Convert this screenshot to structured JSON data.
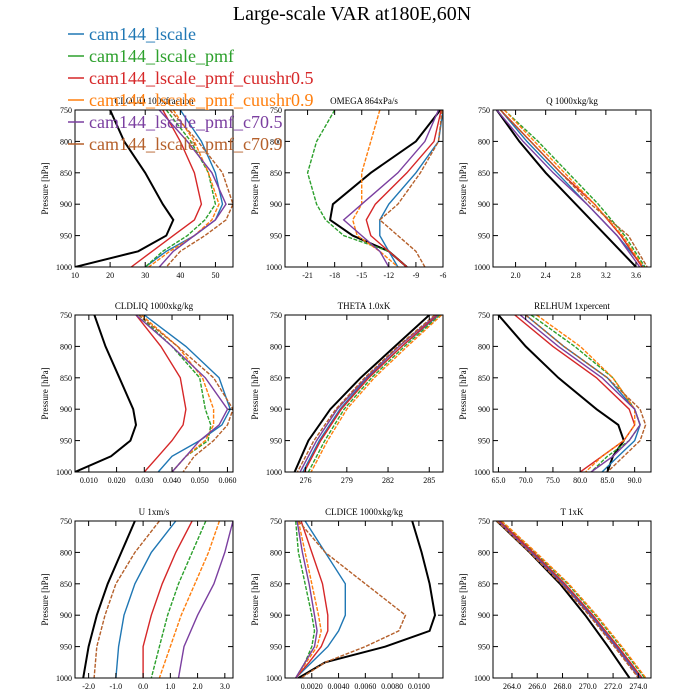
{
  "title": "Large-scale VAR at180E,60N",
  "legend": [
    {
      "name": "cam144_lscale",
      "color": "#1f77b4"
    },
    {
      "name": "cam144_lscale_pmf",
      "color": "#2ca02c"
    },
    {
      "name": "cam144_lscale_pmf_cuushr0.5",
      "color": "#d62728"
    },
    {
      "name": "cam144_lscale_pmf_cuushr0.9",
      "color": "#ff7f0e"
    },
    {
      "name": "cam144_lscale_pmf_c70.5",
      "color": "#7b3fa0"
    },
    {
      "name": "cam144_lscale_pmf_c70.9",
      "color": "#b5602b"
    }
  ],
  "black_line_color": "#000000",
  "chart_data": [
    {
      "type": "line",
      "title": "CLOUD 100xfraction",
      "ylabel": "Pressure [hPa]",
      "xlim": [
        10,
        55
      ],
      "ylim": [
        750,
        1000
      ],
      "xticks": [
        10,
        20,
        30,
        40,
        50
      ],
      "xticklabels": [
        "10",
        "20",
        "30",
        "40",
        "50"
      ],
      "y": [
        750,
        800,
        850,
        900,
        925,
        950,
        975,
        1000
      ],
      "series": [
        {
          "name": "black",
          "values": [
            20,
            24,
            30,
            35,
            38,
            36,
            28,
            10
          ]
        },
        {
          "name": "cam144_lscale",
          "values": [
            40,
            46,
            50,
            52,
            50,
            44,
            36,
            30
          ]
        },
        {
          "name": "cam144_lscale_pmf",
          "values": [
            36,
            43,
            48,
            50,
            47,
            42,
            35,
            30
          ]
        },
        {
          "name": "cam144_lscale_pmf_cuushr0.5",
          "values": [
            35,
            40,
            44,
            46,
            44,
            38,
            32,
            26
          ]
        },
        {
          "name": "cam144_lscale_pmf_cuushr0.9",
          "values": [
            38,
            44,
            48,
            51,
            49,
            44,
            37,
            31
          ]
        },
        {
          "name": "cam144_lscale_pmf_c70.5",
          "values": [
            34,
            42,
            49,
            53,
            50,
            44,
            38,
            34
          ]
        },
        {
          "name": "cam144_lscale_pmf_c70.9",
          "values": [
            37,
            45,
            52,
            55,
            53,
            47,
            40,
            36
          ]
        }
      ]
    },
    {
      "type": "line",
      "title": "OMEGA 864xPa/s",
      "ylabel": "Pressure [hPa]",
      "xlim": [
        -23.5,
        -6
      ],
      "ylim": [
        750,
        1000
      ],
      "xticks": [
        -21,
        -18,
        -15,
        -12,
        -9,
        -6
      ],
      "xticklabels": [
        "-21",
        "-18",
        "-15",
        "-12",
        "-9",
        "-6"
      ],
      "y": [
        750,
        800,
        850,
        900,
        925,
        950,
        975,
        1000
      ],
      "series": [
        {
          "name": "black",
          "values": [
            -6.3,
            -9,
            -14,
            -18.2,
            -18.5,
            -16,
            -12,
            -10
          ]
        },
        {
          "name": "cam144_lscale",
          "values": [
            -6,
            -6.5,
            -9,
            -12,
            -13,
            -13,
            -12,
            -11
          ]
        },
        {
          "name": "cam144_lscale_pmf",
          "values": [
            -18,
            -20,
            -21,
            -20,
            -19,
            -17,
            -12,
            -10
          ]
        },
        {
          "name": "cam144_lscale_pmf_cuushr0.5",
          "values": [
            -6.2,
            -7,
            -10,
            -13.5,
            -14.5,
            -14,
            -12,
            -10
          ]
        },
        {
          "name": "cam144_lscale_pmf_cuushr0.9",
          "values": [
            -13,
            -14,
            -15,
            -15,
            -16,
            -15.5,
            -13,
            -11
          ]
        },
        {
          "name": "cam144_lscale_pmf_c70.5",
          "values": [
            -6.5,
            -8,
            -11,
            -15,
            -17,
            -15,
            -13,
            -12
          ]
        },
        {
          "name": "cam144_lscale_pmf_c70.9",
          "values": [
            -6.1,
            -6.5,
            -8.5,
            -11,
            -13,
            -11,
            -9,
            -8
          ]
        }
      ]
    },
    {
      "type": "line",
      "title": "Q 1000xkg/kg",
      "ylabel": "Pressure [hPa]",
      "xlim": [
        1.7,
        3.8
      ],
      "ylim": [
        750,
        1000
      ],
      "xticks": [
        2.0,
        2.4,
        2.8,
        3.2,
        3.6
      ],
      "xticklabels": [
        "2.0",
        "2.4",
        "2.8",
        "3.2",
        "3.6"
      ],
      "y": [
        750,
        800,
        850,
        900,
        950,
        1000
      ],
      "series": [
        {
          "name": "black",
          "values": [
            1.75,
            2.05,
            2.4,
            2.8,
            3.2,
            3.6
          ]
        },
        {
          "name": "cam144_lscale",
          "values": [
            1.8,
            2.15,
            2.55,
            2.95,
            3.35,
            3.7
          ]
        },
        {
          "name": "cam144_lscale_pmf",
          "values": [
            1.85,
            2.3,
            2.7,
            3.1,
            3.45,
            3.72
          ]
        },
        {
          "name": "cam144_lscale_pmf_cuushr0.5",
          "values": [
            1.8,
            2.2,
            2.6,
            3.05,
            3.4,
            3.68
          ]
        },
        {
          "name": "cam144_lscale_pmf_cuushr0.9",
          "values": [
            1.85,
            2.25,
            2.65,
            3.05,
            3.42,
            3.7
          ]
        },
        {
          "name": "cam144_lscale_pmf_c70.5",
          "values": [
            1.75,
            2.1,
            2.5,
            2.95,
            3.35,
            3.65
          ]
        },
        {
          "name": "cam144_lscale_pmf_c70.9",
          "values": [
            1.8,
            2.2,
            2.6,
            3.0,
            3.5,
            3.75
          ]
        }
      ]
    },
    {
      "type": "line",
      "title": "CLDLIQ 1000xkg/kg",
      "ylabel": "Pressure [hPa]",
      "xlim": [
        0.005,
        0.062
      ],
      "ylim": [
        750,
        1000
      ],
      "xticks": [
        0.01,
        0.02,
        0.03,
        0.04,
        0.05,
        0.06
      ],
      "xticklabels": [
        "0.010",
        "0.020",
        "0.030",
        "0.040",
        "0.050",
        "0.060"
      ],
      "y": [
        750,
        800,
        850,
        900,
        925,
        950,
        975,
        1000
      ],
      "series": [
        {
          "name": "black",
          "values": [
            0.012,
            0.016,
            0.021,
            0.026,
            0.027,
            0.025,
            0.018,
            0.005
          ]
        },
        {
          "name": "cam144_lscale",
          "values": [
            0.03,
            0.045,
            0.057,
            0.061,
            0.058,
            0.05,
            0.04,
            0.035
          ]
        },
        {
          "name": "cam144_lscale_pmf",
          "values": [
            0.028,
            0.04,
            0.05,
            0.052,
            0.054,
            0.053,
            0.045,
            0.04
          ]
        },
        {
          "name": "cam144_lscale_pmf_cuushr0.5",
          "values": [
            0.027,
            0.036,
            0.043,
            0.045,
            0.044,
            0.04,
            0.035,
            0.03
          ]
        },
        {
          "name": "cam144_lscale_pmf_cuushr0.9",
          "values": [
            0.029,
            0.042,
            0.051,
            0.055,
            0.055,
            0.052,
            0.045,
            0.04
          ]
        },
        {
          "name": "cam144_lscale_pmf_c70.5",
          "values": [
            0.027,
            0.04,
            0.052,
            0.06,
            0.057,
            0.05,
            0.045,
            0.04
          ]
        },
        {
          "name": "cam144_lscale_pmf_c70.9",
          "values": [
            0.028,
            0.042,
            0.055,
            0.062,
            0.06,
            0.055,
            0.048,
            0.044
          ]
        }
      ]
    },
    {
      "type": "line",
      "title": "THETA 1.0xK",
      "ylabel": "Pressure [hPa]",
      "xlim": [
        274.5,
        286
      ],
      "ylim": [
        750,
        1000
      ],
      "xticks": [
        276,
        279,
        282,
        285
      ],
      "xticklabels": [
        "276",
        "279",
        "282",
        "285"
      ],
      "y": [
        750,
        800,
        850,
        900,
        950,
        1000
      ],
      "series": [
        {
          "name": "black",
          "values": [
            285,
            282.5,
            280,
            277.8,
            276.2,
            275.2
          ]
        },
        {
          "name": "cam144_lscale",
          "values": [
            285.7,
            283,
            280.5,
            278.5,
            277,
            275.8
          ]
        },
        {
          "name": "cam144_lscale_pmf",
          "values": [
            285.8,
            283.2,
            280.8,
            278.8,
            277.4,
            276.2
          ]
        },
        {
          "name": "cam144_lscale_pmf_cuushr0.5",
          "values": [
            285.6,
            283,
            280.6,
            278.6,
            277.1,
            275.9
          ]
        },
        {
          "name": "cam144_lscale_pmf_cuushr0.9",
          "values": [
            285.9,
            283.4,
            281,
            279,
            277.6,
            276.4
          ]
        },
        {
          "name": "cam144_lscale_pmf_c70.5",
          "values": [
            285.5,
            282.8,
            280.4,
            278.3,
            276.8,
            275.6
          ]
        },
        {
          "name": "cam144_lscale_pmf_c70.9",
          "values": [
            285.4,
            282.7,
            280.3,
            278.2,
            276.6,
            275.4
          ]
        }
      ]
    },
    {
      "type": "line",
      "title": "RELHUM 1xpercent",
      "ylabel": "Pressure [hPa]",
      "xlim": [
        64,
        93
      ],
      "ylim": [
        750,
        1000
      ],
      "xticks": [
        65,
        70,
        75,
        80,
        85,
        90
      ],
      "xticklabels": [
        "65.0",
        "70.0",
        "75.0",
        "80.0",
        "85.0",
        "90.0"
      ],
      "y": [
        750,
        800,
        850,
        900,
        925,
        950,
        975,
        1000
      ],
      "series": [
        {
          "name": "black",
          "values": [
            65,
            70,
            76,
            83,
            87,
            88,
            86,
            85
          ]
        },
        {
          "name": "cam144_lscale",
          "values": [
            70,
            77,
            85,
            90,
            91,
            90,
            87,
            84
          ]
        },
        {
          "name": "cam144_lscale_pmf",
          "values": [
            71,
            79,
            86,
            90,
            91,
            89,
            85,
            82
          ]
        },
        {
          "name": "cam144_lscale_pmf_cuushr0.5",
          "values": [
            68,
            75,
            83,
            89,
            90,
            88,
            84,
            80
          ]
        },
        {
          "name": "cam144_lscale_pmf_cuushr0.9",
          "values": [
            72,
            80,
            86,
            90,
            90,
            88,
            84,
            81
          ]
        },
        {
          "name": "cam144_lscale_pmf_c70.5",
          "values": [
            69,
            76,
            84,
            90,
            91,
            89,
            86,
            82
          ]
        },
        {
          "name": "cam144_lscale_pmf_c70.9",
          "values": [
            70,
            77,
            85,
            91,
            92,
            91,
            88,
            85
          ]
        }
      ]
    },
    {
      "type": "line",
      "title": "U 1xm/s",
      "ylabel": "Pressure [hPa]",
      "xlim": [
        -2.5,
        3.3
      ],
      "ylim": [
        750,
        1000
      ],
      "xticks": [
        -2.0,
        -1.0,
        0.0,
        1.0,
        2.0,
        3.0
      ],
      "xticklabels": [
        "-2.0",
        "-1.0",
        "0.0",
        "1.0",
        "2.0",
        "3.0"
      ],
      "y": [
        750,
        800,
        850,
        900,
        950,
        1000
      ],
      "series": [
        {
          "name": "black",
          "values": [
            -0.3,
            -0.8,
            -1.3,
            -1.7,
            -2.0,
            -2.2
          ]
        },
        {
          "name": "cam144_lscale",
          "values": [
            1.2,
            0.3,
            -0.3,
            -0.7,
            -0.9,
            -1.0
          ]
        },
        {
          "name": "cam144_lscale_pmf",
          "values": [
            2.3,
            1.8,
            1.3,
            0.9,
            0.6,
            0.3
          ]
        },
        {
          "name": "cam144_lscale_pmf_cuushr0.5",
          "values": [
            1.8,
            1.2,
            0.7,
            0.3,
            0.0,
            0.0
          ]
        },
        {
          "name": "cam144_lscale_pmf_cuushr0.9",
          "values": [
            2.8,
            2.4,
            1.9,
            1.4,
            1.0,
            0.6
          ]
        },
        {
          "name": "cam144_lscale_pmf_c70.5",
          "values": [
            3.3,
            3.0,
            2.6,
            2.0,
            1.5,
            1.3
          ]
        },
        {
          "name": "cam144_lscale_pmf_c70.9",
          "values": [
            0.6,
            -0.3,
            -1.0,
            -1.4,
            -1.7,
            -1.8
          ]
        }
      ]
    },
    {
      "type": "line",
      "title": "CLDICE 1000xkg/kg",
      "ylabel": "Pressure [hPa]",
      "xlim": [
        0,
        0.0118
      ],
      "ylim": [
        750,
        1000
      ],
      "xticks": [
        0.002,
        0.004,
        0.006,
        0.008,
        0.01
      ],
      "xticklabels": [
        "0.0020",
        "0.0040",
        "0.0060",
        "0.0080",
        "0.0100"
      ],
      "y": [
        750,
        800,
        850,
        900,
        925,
        950,
        975,
        1000
      ],
      "series": [
        {
          "name": "black",
          "values": [
            0.0095,
            0.0102,
            0.0108,
            0.0112,
            0.0108,
            0.0075,
            0.003,
            0.001
          ]
        },
        {
          "name": "cam144_lscale",
          "values": [
            0.0015,
            0.003,
            0.0045,
            0.0045,
            0.004,
            0.0032,
            0.002,
            0.0008
          ]
        },
        {
          "name": "cam144_lscale_pmf",
          "values": [
            0.0008,
            0.001,
            0.0015,
            0.002,
            0.0022,
            0.002,
            0.0015,
            0.0008
          ]
        },
        {
          "name": "cam144_lscale_pmf_cuushr0.5",
          "values": [
            0.0012,
            0.002,
            0.0028,
            0.0032,
            0.0032,
            0.0027,
            0.0018,
            0.0008
          ]
        },
        {
          "name": "cam144_lscale_pmf_cuushr0.9",
          "values": [
            0.001,
            0.0015,
            0.002,
            0.0025,
            0.0027,
            0.0024,
            0.0016,
            0.0008
          ]
        },
        {
          "name": "cam144_lscale_pmf_c70.5",
          "values": [
            0.0009,
            0.0013,
            0.0018,
            0.0022,
            0.0024,
            0.0022,
            0.0015,
            0.0008
          ]
        },
        {
          "name": "cam144_lscale_pmf_c70.9",
          "values": [
            0.001,
            0.003,
            0.006,
            0.009,
            0.0085,
            0.006,
            0.003,
            0.0012
          ]
        }
      ]
    },
    {
      "type": "line",
      "title": "T 1xK",
      "ylabel": "Pressure [hPa]",
      "xlim": [
        262.5,
        275
      ],
      "ylim": [
        750,
        1000
      ],
      "xticks": [
        264,
        266,
        268,
        270,
        272,
        274
      ],
      "xticklabels": [
        "264.0",
        "266.0",
        "268.0",
        "270.0",
        "272.0",
        "274.0"
      ],
      "y": [
        750,
        800,
        850,
        900,
        950,
        1000
      ],
      "series": [
        {
          "name": "black",
          "values": [
            262.8,
            265.4,
            267.8,
            269.8,
            271.6,
            273.3
          ]
        },
        {
          "name": "cam144_lscale",
          "values": [
            263,
            265.6,
            268.1,
            270.3,
            272.3,
            274.2
          ]
        },
        {
          "name": "cam144_lscale_pmf",
          "values": [
            263.1,
            265.8,
            268.4,
            270.6,
            272.6,
            274.5
          ]
        },
        {
          "name": "cam144_lscale_pmf_cuushr0.5",
          "values": [
            263,
            265.7,
            268.2,
            270.4,
            272.4,
            274.3
          ]
        },
        {
          "name": "cam144_lscale_pmf_cuushr0.9",
          "values": [
            263.2,
            265.9,
            268.5,
            270.7,
            272.7,
            274.6
          ]
        },
        {
          "name": "cam144_lscale_pmf_c70.5",
          "values": [
            262.9,
            265.5,
            268,
            270.2,
            272.2,
            274.1
          ]
        },
        {
          "name": "cam144_lscale_pmf_c70.9",
          "values": [
            262.8,
            265.4,
            267.9,
            270.1,
            272.1,
            274
          ]
        }
      ]
    }
  ],
  "yticks": [
    750,
    800,
    850,
    900,
    950,
    1000
  ],
  "yticklabels": [
    "750",
    "800",
    "850",
    "900",
    "950",
    "1000"
  ]
}
